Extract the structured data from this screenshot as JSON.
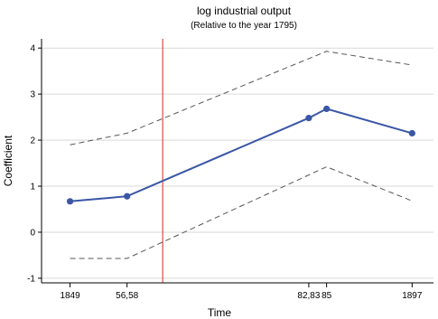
{
  "chart_data": {
    "type": "line",
    "title": "log industrial output",
    "subtitle": "(Relative to the year 1795)",
    "xlabel": "Time",
    "ylabel": "Coefficient",
    "xlim": [
      1845,
      1900
    ],
    "ylim": [
      -1.1,
      4.2
    ],
    "grid": true,
    "x_ticks": [
      {
        "value": 1849,
        "label": "1849"
      },
      {
        "value": 1857,
        "label": "56,58"
      },
      {
        "value": 1882.5,
        "label": "82,83"
      },
      {
        "value": 1885,
        "label": "85"
      },
      {
        "value": 1897,
        "label": "1897"
      }
    ],
    "y_ticks": [
      -1,
      0,
      1,
      2,
      3,
      4
    ],
    "vertical_line": {
      "x": 1862,
      "color": "#d62728"
    },
    "series": [
      {
        "style": "solid-markers",
        "color": "#3a56a5",
        "x": [
          1849,
          1857,
          1882.5,
          1885,
          1897
        ],
        "y": [
          0.67,
          0.78,
          2.48,
          2.68,
          2.15
        ]
      },
      {
        "style": "dashed",
        "color": "#555555",
        "x": [
          1849,
          1857,
          1885,
          1897
        ],
        "y": [
          1.9,
          2.15,
          3.93,
          3.63
        ]
      },
      {
        "style": "dashed",
        "color": "#555555",
        "x": [
          1849,
          1857,
          1885,
          1897
        ],
        "y": [
          -0.57,
          -0.57,
          1.42,
          0.68
        ]
      }
    ]
  }
}
